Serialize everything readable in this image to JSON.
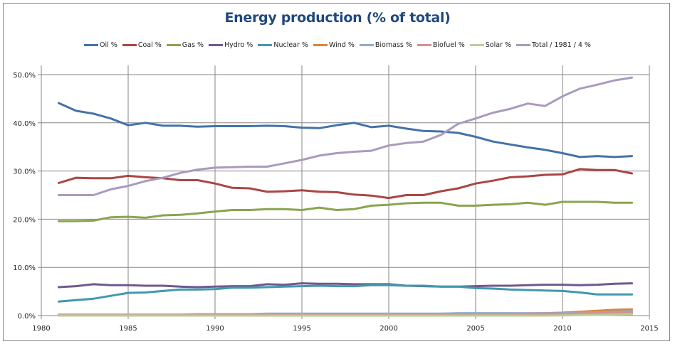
{
  "chart_data": {
    "type": "line",
    "title": "Energy production (% of total)",
    "xlabel": "",
    "ylabel": "",
    "xlim": [
      1980,
      2015
    ],
    "ylim": [
      0,
      50
    ],
    "x_ticks": [
      "1980",
      "1985",
      "1990",
      "1995",
      "2000",
      "2005",
      "2010",
      "2015"
    ],
    "x_tick_values": [
      1980,
      1985,
      1990,
      1995,
      2000,
      2005,
      2010,
      2015
    ],
    "y_ticks": [
      "0.0%",
      "10.0%",
      "20.0%",
      "30.0%",
      "40.0%",
      "50.0%"
    ],
    "y_tick_values": [
      0,
      10,
      20,
      30,
      40,
      50
    ],
    "grid": "major x and y",
    "legend_position": "top",
    "x": [
      1981,
      1982,
      1983,
      1984,
      1985,
      1986,
      1987,
      1988,
      1989,
      1990,
      1991,
      1992,
      1993,
      1994,
      1995,
      1996,
      1997,
      1998,
      1999,
      2000,
      2001,
      2002,
      2003,
      2004,
      2005,
      2006,
      2007,
      2008,
      2009,
      2010,
      2011,
      2012,
      2013,
      2014
    ],
    "series": [
      {
        "name": "Oil %",
        "color": "#4572a7",
        "values": [
          44.1,
          42.5,
          41.9,
          40.9,
          39.5,
          40.0,
          39.4,
          39.4,
          39.2,
          39.3,
          39.3,
          39.3,
          39.4,
          39.3,
          39.0,
          38.9,
          39.5,
          40.0,
          39.1,
          39.4,
          38.8,
          38.3,
          38.2,
          37.9,
          37.1,
          36.1,
          35.5,
          34.9,
          34.4,
          33.7,
          32.9,
          33.1,
          32.9,
          33.1
        ]
      },
      {
        "name": "Coal %",
        "color": "#aa4643",
        "values": [
          27.5,
          28.6,
          28.5,
          28.5,
          29.0,
          28.7,
          28.5,
          28.1,
          28.1,
          27.4,
          26.5,
          26.4,
          25.7,
          25.8,
          26.0,
          25.7,
          25.6,
          25.1,
          24.9,
          24.4,
          25.0,
          25.0,
          25.8,
          26.4,
          27.4,
          28.0,
          28.7,
          28.9,
          29.2,
          29.3,
          30.4,
          30.2,
          30.2,
          29.5
        ]
      },
      {
        "name": "Gas %",
        "color": "#89a54e",
        "values": [
          19.6,
          19.6,
          19.7,
          20.4,
          20.5,
          20.3,
          20.8,
          20.9,
          21.2,
          21.6,
          21.9,
          21.9,
          22.1,
          22.1,
          21.9,
          22.4,
          21.9,
          22.1,
          22.8,
          23.0,
          23.3,
          23.4,
          23.4,
          22.8,
          22.8,
          23.0,
          23.1,
          23.4,
          23.0,
          23.6,
          23.6,
          23.6,
          23.4,
          23.4
        ]
      },
      {
        "name": "Hydro %",
        "color": "#71588f",
        "values": [
          5.9,
          6.1,
          6.5,
          6.3,
          6.3,
          6.2,
          6.2,
          6.0,
          5.9,
          6.0,
          6.1,
          6.1,
          6.5,
          6.4,
          6.7,
          6.6,
          6.6,
          6.5,
          6.5,
          6.5,
          6.2,
          6.1,
          6.0,
          6.0,
          6.1,
          6.2,
          6.2,
          6.3,
          6.4,
          6.4,
          6.3,
          6.4,
          6.6,
          6.7
        ]
      },
      {
        "name": "Nuclear %",
        "color": "#4198af",
        "values": [
          2.9,
          3.2,
          3.5,
          4.1,
          4.7,
          4.8,
          5.1,
          5.4,
          5.4,
          5.5,
          5.8,
          5.8,
          5.9,
          6.0,
          6.1,
          6.2,
          6.1,
          6.1,
          6.3,
          6.3,
          6.2,
          6.2,
          6.0,
          6.0,
          5.7,
          5.6,
          5.4,
          5.3,
          5.2,
          5.1,
          4.8,
          4.4,
          4.4,
          4.4
        ]
      },
      {
        "name": "Wind %",
        "color": "#db843d",
        "values": [
          0,
          0,
          0,
          0,
          0,
          0,
          0,
          0,
          0,
          0,
          0,
          0,
          0,
          0,
          0,
          0,
          0,
          0,
          0,
          0,
          0.05,
          0.05,
          0.1,
          0.1,
          0.15,
          0.2,
          0.3,
          0.4,
          0.5,
          0.6,
          0.8,
          1.0,
          1.2,
          1.3
        ]
      },
      {
        "name": "Biomass %",
        "color": "#93a9cf",
        "values": [
          0.2,
          0.2,
          0.2,
          0.2,
          0.2,
          0.2,
          0.2,
          0.2,
          0.3,
          0.3,
          0.3,
          0.3,
          0.4,
          0.4,
          0.4,
          0.4,
          0.4,
          0.4,
          0.4,
          0.4,
          0.4,
          0.4,
          0.4,
          0.5,
          0.5,
          0.5,
          0.5,
          0.5,
          0.5,
          0.5,
          0.6,
          0.7,
          0.8,
          0.9
        ]
      },
      {
        "name": "Biofuel %",
        "color": "#d19392",
        "values": [
          0.1,
          0.1,
          0.1,
          0.1,
          0.1,
          0.1,
          0.1,
          0.1,
          0.1,
          0.1,
          0.1,
          0.1,
          0.1,
          0.1,
          0.1,
          0.1,
          0.1,
          0.1,
          0.1,
          0.1,
          0.1,
          0.1,
          0.2,
          0.2,
          0.2,
          0.3,
          0.3,
          0.4,
          0.4,
          0.4,
          0.5,
          0.5,
          0.6,
          0.6
        ]
      },
      {
        "name": "Solar %",
        "color": "#b9cd96",
        "values": [
          0,
          0,
          0,
          0,
          0,
          0,
          0,
          0,
          0,
          0,
          0,
          0,
          0,
          0,
          0,
          0,
          0,
          0,
          0,
          0,
          0,
          0,
          0,
          0,
          0,
          0,
          0,
          0,
          0,
          0.05,
          0.1,
          0.15,
          0.2,
          0.3
        ]
      },
      {
        "name": "Total / 1981 / 4 %",
        "color": "#a99bbd",
        "values": [
          25.0,
          25.0,
          25.0,
          26.2,
          26.9,
          27.9,
          28.6,
          29.6,
          30.3,
          30.7,
          30.8,
          30.9,
          30.9,
          31.6,
          32.3,
          33.2,
          33.7,
          34.0,
          34.2,
          35.3,
          35.8,
          36.1,
          37.5,
          39.8,
          40.9,
          42.1,
          42.9,
          44.0,
          43.5,
          45.5,
          47.1,
          47.9,
          48.8,
          49.4
        ]
      }
    ]
  }
}
